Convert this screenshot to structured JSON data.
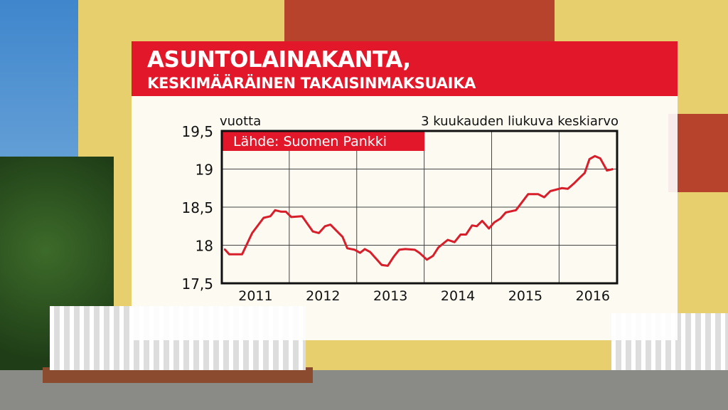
{
  "header": {
    "title": "ASUNTOLAINAKANTA,",
    "subtitle": "KESKIMÄÄRÄINEN TAKAISINMAKSUAIKA"
  },
  "colors": {
    "accent": "#e3172a",
    "line": "#d81e2a"
  },
  "chart_data": {
    "type": "line",
    "title": "ASUNTOLAINAKANTA, KESKIMÄÄRÄINEN TAKAISINMAKSUAIKA",
    "ylabel": "vuotta",
    "note": "3 kuukauden liukuva keskiarvo",
    "source": "Lähde: Suomen Pankki",
    "ylim": [
      17.5,
      19.5
    ],
    "xlim": [
      2011,
      2016.86
    ],
    "yticks": [
      "17,5",
      "18",
      "18,5",
      "19",
      "19,5"
    ],
    "ytick_values": [
      17.5,
      18,
      18.5,
      19,
      19.5
    ],
    "xticks": [
      "2011",
      "2012",
      "2013",
      "2014",
      "2015",
      "2016"
    ],
    "grid": true,
    "x": [
      2011.04,
      2011.11,
      2011.3,
      2011.45,
      2011.62,
      2011.72,
      2011.79,
      2011.88,
      2011.95,
      2012.03,
      2012.19,
      2012.35,
      2012.44,
      2012.53,
      2012.61,
      2012.7,
      2012.79,
      2012.86,
      2012.97,
      2013.05,
      2013.12,
      2013.2,
      2013.37,
      2013.46,
      2013.55,
      2013.63,
      2013.72,
      2013.86,
      2013.93,
      2014.04,
      2014.13,
      2014.21,
      2014.35,
      2014.45,
      2014.54,
      2014.62,
      2014.71,
      2014.78,
      2014.86,
      2014.96,
      2015.04,
      2015.13,
      2015.21,
      2015.36,
      2015.54,
      2015.69,
      2015.78,
      2015.87,
      2016.04,
      2016.13,
      2016.22,
      2016.31,
      2016.38,
      2016.45,
      2016.53,
      2016.61,
      2016.71,
      2016.8
    ],
    "y": [
      17.95,
      17.88,
      17.88,
      18.16,
      18.36,
      18.38,
      18.46,
      18.44,
      18.44,
      18.37,
      18.38,
      18.18,
      18.16,
      18.25,
      18.27,
      18.19,
      18.11,
      17.96,
      17.94,
      17.9,
      17.95,
      17.91,
      17.74,
      17.73,
      17.85,
      17.94,
      17.95,
      17.94,
      17.9,
      17.81,
      17.86,
      17.97,
      18.07,
      18.04,
      18.14,
      18.14,
      18.26,
      18.25,
      18.32,
      18.22,
      18.3,
      18.35,
      18.43,
      18.46,
      18.67,
      18.67,
      18.63,
      18.71,
      18.75,
      18.74,
      18.81,
      18.89,
      18.95,
      19.13,
      19.17,
      19.14,
      18.98,
      19.0
    ]
  }
}
